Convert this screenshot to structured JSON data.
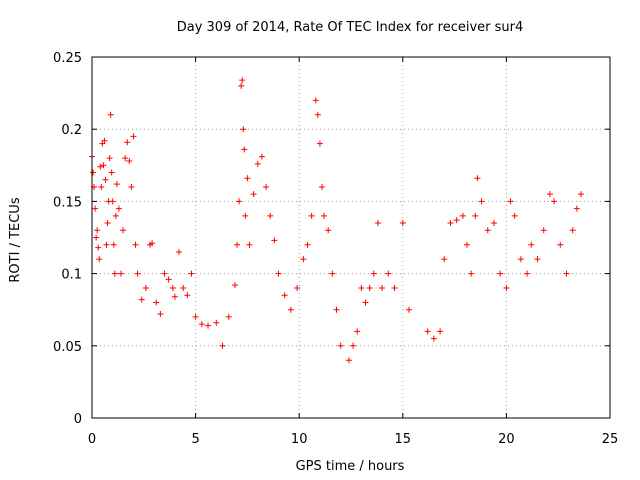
{
  "chart_data": {
    "type": "scatter",
    "title": "Day 309 of 2014, Rate Of TEC Index for receiver sur4",
    "xlabel": "GPS time / hours",
    "ylabel": "ROTI / TECUs",
    "xlim": [
      0,
      25
    ],
    "ylim": [
      0,
      0.25
    ],
    "x_ticks": [
      "0",
      "5",
      "10",
      "15",
      "20",
      "25"
    ],
    "y_ticks": [
      "0",
      "0.05",
      "0.1",
      "0.15",
      "0.2",
      "0.25"
    ],
    "grid": true,
    "legend": "none",
    "marker": "+",
    "color": "#ff0000",
    "series": [
      {
        "name": "",
        "points": [
          [
            0.0,
            0.181
          ],
          [
            0.05,
            0.17
          ],
          [
            0.1,
            0.16
          ],
          [
            0.15,
            0.145
          ],
          [
            0.2,
            0.125
          ],
          [
            0.25,
            0.13
          ],
          [
            0.3,
            0.118
          ],
          [
            0.35,
            0.11
          ],
          [
            0.4,
            0.174
          ],
          [
            0.45,
            0.16
          ],
          [
            0.5,
            0.19
          ],
          [
            0.55,
            0.175
          ],
          [
            0.6,
            0.192
          ],
          [
            0.65,
            0.165
          ],
          [
            0.7,
            0.12
          ],
          [
            0.75,
            0.135
          ],
          [
            0.8,
            0.15
          ],
          [
            0.85,
            0.18
          ],
          [
            0.9,
            0.21
          ],
          [
            0.95,
            0.17
          ],
          [
            1.0,
            0.15
          ],
          [
            1.05,
            0.12
          ],
          [
            1.1,
            0.1
          ],
          [
            1.15,
            0.14
          ],
          [
            1.2,
            0.162
          ],
          [
            1.3,
            0.145
          ],
          [
            1.4,
            0.1
          ],
          [
            1.5,
            0.13
          ],
          [
            1.6,
            0.18
          ],
          [
            1.7,
            0.191
          ],
          [
            1.8,
            0.178
          ],
          [
            1.9,
            0.16
          ],
          [
            2.0,
            0.195
          ],
          [
            2.1,
            0.12
          ],
          [
            2.2,
            0.1
          ],
          [
            2.4,
            0.082
          ],
          [
            2.6,
            0.09
          ],
          [
            2.8,
            0.12
          ],
          [
            2.9,
            0.121
          ],
          [
            3.1,
            0.08
          ],
          [
            3.3,
            0.072
          ],
          [
            3.5,
            0.1
          ],
          [
            3.7,
            0.096
          ],
          [
            3.9,
            0.09
          ],
          [
            4.0,
            0.084
          ],
          [
            4.2,
            0.115
          ],
          [
            4.4,
            0.09
          ],
          [
            4.6,
            0.085
          ],
          [
            4.8,
            0.1
          ],
          [
            5.0,
            0.07
          ],
          [
            5.3,
            0.065
          ],
          [
            5.6,
            0.064
          ],
          [
            6.0,
            0.066
          ],
          [
            6.3,
            0.05
          ],
          [
            6.6,
            0.07
          ],
          [
            6.9,
            0.092
          ],
          [
            7.0,
            0.12
          ],
          [
            7.1,
            0.15
          ],
          [
            7.2,
            0.23
          ],
          [
            7.25,
            0.234
          ],
          [
            7.3,
            0.2
          ],
          [
            7.35,
            0.186
          ],
          [
            7.4,
            0.14
          ],
          [
            7.5,
            0.166
          ],
          [
            7.6,
            0.12
          ],
          [
            7.8,
            0.155
          ],
          [
            8.0,
            0.176
          ],
          [
            8.2,
            0.181
          ],
          [
            8.4,
            0.16
          ],
          [
            8.6,
            0.14
          ],
          [
            8.8,
            0.123
          ],
          [
            9.0,
            0.1
          ],
          [
            9.3,
            0.085
          ],
          [
            9.6,
            0.075
          ],
          [
            9.9,
            0.09
          ],
          [
            10.2,
            0.11
          ],
          [
            10.4,
            0.12
          ],
          [
            10.6,
            0.14
          ],
          [
            10.8,
            0.22
          ],
          [
            10.9,
            0.21
          ],
          [
            11.0,
            0.19
          ],
          [
            11.1,
            0.16
          ],
          [
            11.2,
            0.14
          ],
          [
            11.4,
            0.13
          ],
          [
            11.6,
            0.1
          ],
          [
            11.8,
            0.075
          ],
          [
            12.0,
            0.05
          ],
          [
            12.4,
            0.04
          ],
          [
            12.6,
            0.05
          ],
          [
            12.8,
            0.06
          ],
          [
            13.0,
            0.09
          ],
          [
            13.2,
            0.08
          ],
          [
            13.4,
            0.09
          ],
          [
            13.6,
            0.1
          ],
          [
            13.8,
            0.135
          ],
          [
            14.0,
            0.09
          ],
          [
            14.3,
            0.1
          ],
          [
            14.6,
            0.09
          ],
          [
            15.0,
            0.135
          ],
          [
            15.3,
            0.075
          ],
          [
            16.2,
            0.06
          ],
          [
            16.5,
            0.055
          ],
          [
            16.8,
            0.06
          ],
          [
            17.0,
            0.11
          ],
          [
            17.3,
            0.135
          ],
          [
            17.6,
            0.137
          ],
          [
            17.9,
            0.14
          ],
          [
            18.1,
            0.12
          ],
          [
            18.3,
            0.1
          ],
          [
            18.5,
            0.14
          ],
          [
            18.6,
            0.166
          ],
          [
            18.8,
            0.15
          ],
          [
            19.1,
            0.13
          ],
          [
            19.4,
            0.135
          ],
          [
            19.7,
            0.1
          ],
          [
            20.0,
            0.09
          ],
          [
            20.2,
            0.15
          ],
          [
            20.4,
            0.14
          ],
          [
            20.7,
            0.11
          ],
          [
            21.0,
            0.1
          ],
          [
            21.2,
            0.12
          ],
          [
            21.5,
            0.11
          ],
          [
            21.8,
            0.13
          ],
          [
            22.1,
            0.155
          ],
          [
            22.3,
            0.15
          ],
          [
            22.6,
            0.12
          ],
          [
            22.9,
            0.1
          ],
          [
            23.2,
            0.13
          ],
          [
            23.4,
            0.145
          ],
          [
            23.6,
            0.155
          ]
        ]
      }
    ]
  }
}
